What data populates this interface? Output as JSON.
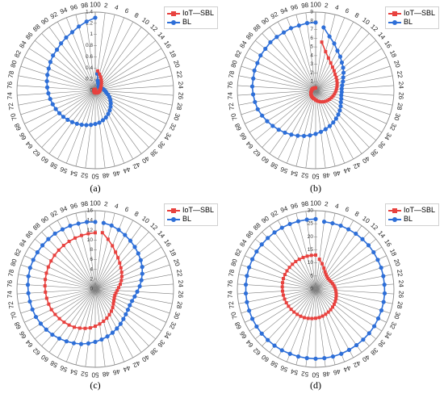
{
  "colors": {
    "iot": "#e8423f",
    "bl": "#2e6fd8",
    "grid": "#7f7f7f",
    "axis": "#8c8c8c"
  },
  "chart_data": [
    {
      "type": "line",
      "subtype": "radar",
      "label": "(a)",
      "angles": [
        2,
        4,
        6,
        8,
        10,
        12,
        14,
        16,
        18,
        20,
        22,
        24,
        26,
        28,
        30,
        32,
        34,
        36,
        38,
        40,
        42,
        44,
        46,
        48,
        50,
        52,
        54,
        56,
        58,
        60,
        62,
        64,
        66,
        68,
        70,
        72,
        74,
        76,
        78,
        80,
        82,
        84,
        86,
        88,
        90,
        92,
        94,
        96,
        98,
        100
      ],
      "radial_ticks": [
        "0",
        "0.2",
        "0.4",
        "0.6",
        "0.8",
        "1",
        "1.2",
        "1.4"
      ],
      "rmax": 1.4,
      "legend": [
        "IoT—SBL",
        "BL"
      ],
      "legend_position": "top-right",
      "series": [
        {
          "name": "IoT—SBL",
          "marker": "square",
          "values": [
            0.35,
            0.3,
            0.26,
            0.22,
            0.19,
            0.16,
            0.14,
            0.12,
            0.11,
            0.1,
            0.09,
            0.085,
            0.08,
            0.075,
            0.07,
            0.065,
            0.06,
            0.058,
            0.055,
            0.052,
            0.05,
            0.048,
            0.046,
            0.044,
            0.042,
            0.04,
            0.038,
            0.036,
            0.034,
            0.032,
            0.03,
            0.028,
            0.027,
            0.026,
            0.025,
            0.024,
            0.023,
            0.022,
            0.021,
            0.02,
            0.02,
            0.02,
            0.02,
            0.02,
            0.02,
            0.02,
            0.02,
            0.02,
            0.02,
            0.02
          ]
        },
        {
          "name": "BL",
          "marker": "circle",
          "values": [
            0.3,
            0.18,
            0.14,
            0.12,
            0.1,
            0.09,
            0.09,
            0.09,
            0.1,
            0.12,
            0.14,
            0.16,
            0.18,
            0.2,
            0.24,
            0.28,
            0.32,
            0.36,
            0.4,
            0.44,
            0.48,
            0.52,
            0.55,
            0.58,
            0.6,
            0.62,
            0.64,
            0.66,
            0.68,
            0.7,
            0.72,
            0.74,
            0.76,
            0.78,
            0.8,
            0.82,
            0.84,
            0.86,
            0.88,
            0.9,
            0.92,
            0.95,
            0.98,
            1.0,
            1.04,
            1.08,
            1.12,
            1.18,
            1.24,
            1.3
          ]
        }
      ]
    },
    {
      "type": "line",
      "subtype": "radar",
      "label": "(b)",
      "angles": [
        2,
        4,
        6,
        8,
        10,
        12,
        14,
        16,
        18,
        20,
        22,
        24,
        26,
        28,
        30,
        32,
        34,
        36,
        38,
        40,
        42,
        44,
        46,
        48,
        50,
        52,
        54,
        56,
        58,
        60,
        62,
        64,
        66,
        68,
        70,
        72,
        74,
        76,
        78,
        80,
        82,
        84,
        86,
        88,
        90,
        92,
        94,
        96,
        98,
        100
      ],
      "radial_ticks": [
        "0",
        "1",
        "2",
        "3",
        "4",
        "5",
        "6",
        "7",
        "8",
        "9"
      ],
      "rmax": 9,
      "legend": [
        "IoT—SBL",
        "BL"
      ],
      "legend_position": "top-right",
      "series": [
        {
          "name": "IoT—SBL",
          "marker": "square",
          "values": [
            5.6,
            4.6,
            4.0,
            3.6,
            3.3,
            3.1,
            2.9,
            2.8,
            2.7,
            2.6,
            2.5,
            2.4,
            2.3,
            2.2,
            2.1,
            2.0,
            1.9,
            1.8,
            1.7,
            1.6,
            1.5,
            1.4,
            1.3,
            1.2,
            1.1,
            1.0,
            0.95,
            0.9,
            0.85,
            0.8,
            0.75,
            0.7,
            0.65,
            0.6,
            0.55,
            0.5,
            0.48,
            0.46,
            0.44,
            0.42,
            0.4,
            0.38,
            0.36,
            0.34,
            0.32,
            0.3,
            0.3,
            0.3,
            0.3,
            0.3
          ]
        },
        {
          "name": "BL",
          "marker": "circle",
          "values": [
            7.3,
            6.4,
            5.8,
            5.2,
            4.8,
            4.4,
            4.1,
            3.8,
            3.5,
            3.3,
            3.1,
            3.0,
            3.0,
            3.0,
            3.1,
            3.2,
            3.4,
            3.6,
            3.8,
            4.0,
            4.2,
            4.4,
            4.6,
            4.8,
            5.0,
            5.2,
            5.4,
            5.6,
            5.8,
            6.0,
            6.2,
            6.4,
            6.6,
            6.8,
            7.0,
            7.1,
            7.2,
            7.3,
            7.3,
            7.4,
            7.4,
            7.5,
            7.5,
            7.6,
            7.6,
            7.6,
            7.7,
            7.7,
            7.8,
            7.8
          ]
        }
      ]
    },
    {
      "type": "line",
      "subtype": "radar",
      "label": "(c)",
      "angles": [
        2,
        4,
        6,
        8,
        10,
        12,
        14,
        16,
        18,
        20,
        22,
        24,
        26,
        28,
        30,
        32,
        34,
        36,
        38,
        40,
        42,
        44,
        46,
        48,
        50,
        52,
        54,
        56,
        58,
        60,
        62,
        64,
        66,
        68,
        70,
        72,
        74,
        76,
        78,
        80,
        82,
        84,
        86,
        88,
        90,
        92,
        94,
        96,
        98,
        100
      ],
      "radial_ticks": [
        "0",
        "2",
        "4",
        "6",
        "8",
        "10",
        "12",
        "14",
        "16"
      ],
      "rmax": 16,
      "legend": [
        "IoT—SBL",
        "BL"
      ],
      "legend_position": "top-right",
      "series": [
        {
          "name": "IoT—SBL",
          "marker": "square",
          "values": [
            11.6,
            10.5,
            9.5,
            8.6,
            7.9,
            7.3,
            6.8,
            6.4,
            6.0,
            5.6,
            5.2,
            4.8,
            4.5,
            4.3,
            4.2,
            4.3,
            4.5,
            4.8,
            5.2,
            5.6,
            6.0,
            6.4,
            6.8,
            7.2,
            7.6,
            8.0,
            8.3,
            8.6,
            8.9,
            9.1,
            9.3,
            9.5,
            9.7,
            9.9,
            10.0,
            10.1,
            10.2,
            10.3,
            10.4,
            10.5,
            10.6,
            10.7,
            10.8,
            10.9,
            11.0,
            11.1,
            11.2,
            11.3,
            11.4,
            11.5
          ]
        },
        {
          "name": "BL",
          "marker": "circle",
          "values": [
            13.6,
            13.4,
            13.0,
            12.6,
            12.2,
            11.8,
            11.4,
            11.0,
            10.6,
            10.1,
            9.6,
            9.1,
            8.6,
            8.2,
            7.9,
            7.8,
            7.9,
            8.1,
            8.4,
            8.8,
            9.2,
            9.6,
            10.0,
            10.4,
            10.8,
            11.2,
            11.6,
            11.9,
            12.2,
            12.5,
            12.8,
            13.0,
            13.2,
            13.4,
            13.5,
            13.6,
            13.7,
            13.8,
            13.9,
            14.0,
            14.0,
            14.0,
            14.0,
            14.0,
            14.0,
            13.9,
            13.9,
            13.8,
            13.8,
            13.7
          ]
        }
      ]
    },
    {
      "type": "line",
      "subtype": "radar",
      "label": "(d)",
      "angles": [
        2,
        4,
        6,
        8,
        10,
        12,
        14,
        16,
        18,
        20,
        22,
        24,
        26,
        28,
        30,
        32,
        34,
        36,
        38,
        40,
        42,
        44,
        46,
        48,
        50,
        52,
        54,
        56,
        58,
        60,
        62,
        64,
        66,
        68,
        70,
        72,
        74,
        76,
        78,
        80,
        82,
        84,
        86,
        88,
        90,
        92,
        94,
        96,
        98,
        100
      ],
      "radial_ticks": [
        "0",
        "5",
        "10",
        "15",
        "20",
        "25",
        "30"
      ],
      "rmax": 30,
      "legend": [
        "IoT—SBL",
        "BL"
      ],
      "legend_position": "top-right",
      "series": [
        {
          "name": "IoT—SBL",
          "marker": "square",
          "values": [
            11.5,
            10.0,
            8.6,
            7.5,
            6.8,
            6.4,
            6.2,
            6.3,
            6.5,
            6.8,
            7.1,
            7.4,
            7.7,
            8.0,
            8.3,
            8.6,
            8.9,
            9.2,
            9.5,
            9.8,
            10.1,
            10.4,
            10.7,
            11.0,
            11.2,
            11.4,
            11.6,
            11.8,
            11.9,
            12.0,
            12.1,
            12.2,
            12.3,
            12.4,
            12.5,
            12.6,
            12.7,
            12.8,
            12.9,
            13.0,
            13.0,
            13.0,
            13.0,
            13.0,
            13.0,
            13.0,
            13.0,
            13.0,
            13.0,
            13.0
          ]
        },
        {
          "name": "BL",
          "marker": "circle",
          "values": [
            26.0,
            26.0,
            26.1,
            26.1,
            26.2,
            26.2,
            26.3,
            26.3,
            26.3,
            26.4,
            26.4,
            26.4,
            26.5,
            26.5,
            26.5,
            26.5,
            26.6,
            26.6,
            26.6,
            26.6,
            26.6,
            26.7,
            26.7,
            26.7,
            26.7,
            26.7,
            26.7,
            26.7,
            26.8,
            26.8,
            26.8,
            26.8,
            26.8,
            26.8,
            26.8,
            26.8,
            26.8,
            26.8,
            26.8,
            26.8,
            26.8,
            26.8,
            26.8,
            26.8,
            26.8,
            26.8,
            26.8,
            26.8,
            26.8,
            26.8
          ]
        }
      ]
    }
  ]
}
